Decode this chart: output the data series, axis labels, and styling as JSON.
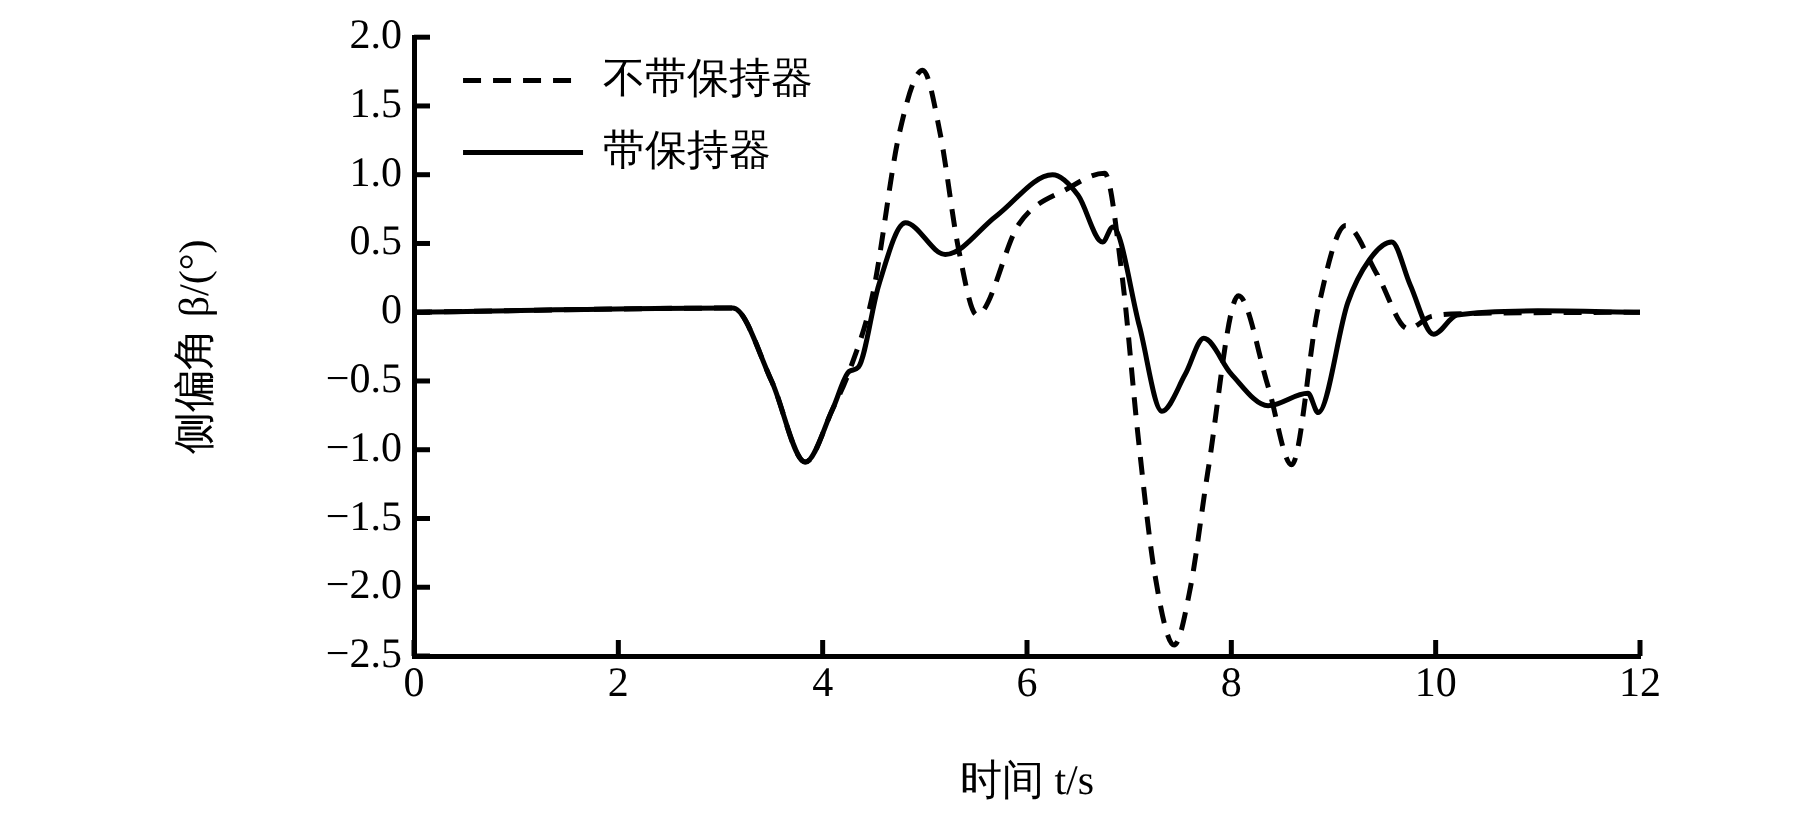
{
  "chart_data": {
    "type": "line",
    "xlabel": "时间 t/s",
    "ylabel": "侧偏角 β/(°)",
    "xlim": [
      0,
      12
    ],
    "xticks": [
      0,
      2,
      4,
      6,
      8,
      10,
      12
    ],
    "ylim": [
      -2.5,
      2
    ],
    "yticks": [
      {
        "value": 2,
        "label": "2.0"
      },
      {
        "value": 1.5,
        "label": "1.5"
      },
      {
        "value": 1,
        "label": "1.0"
      },
      {
        "value": 0.5,
        "label": "0.5"
      },
      0,
      {
        "value": -0.5,
        "label": "−0.5"
      },
      {
        "value": -1,
        "label": "−1.0"
      },
      {
        "value": -1.5,
        "label": "−1.5"
      },
      {
        "value": -2,
        "label": "−2.0"
      },
      {
        "value": -2.5,
        "label": "−2.5"
      }
    ],
    "grid": false,
    "legend": "top left",
    "marker": "none",
    "series": [
      {
        "name": "不带保持器",
        "color": "#000000",
        "line_style": "dashed",
        "x": [
          0,
          3.12,
          3.5,
          3.83,
          4.1,
          4.26,
          4.49,
          4.75,
          4.98,
          5.15,
          5.33,
          5.51,
          5.92,
          6.4,
          6.76,
          6.93,
          7.09,
          7.25,
          7.44,
          7.6,
          7.77,
          8.07,
          8.36,
          8.59,
          8.85,
          9.12,
          9.43,
          9.73,
          9.96,
          10.3,
          12
        ],
        "values": [
          0,
          0.03,
          -0.5,
          -1.09,
          -0.7,
          -0.43,
          0.13,
          1.3,
          1.76,
          1.3,
          0.46,
          -0.02,
          0.64,
          0.9,
          1.01,
          0.27,
          -0.92,
          -1.9,
          -2.42,
          -2.0,
          -1.16,
          0.12,
          -0.54,
          -1.11,
          0.03,
          0.63,
          0.27,
          -0.12,
          -0.03,
          -0.01,
          0
        ]
      },
      {
        "name": "带保持器",
        "color": "#000000",
        "line_style": "solid",
        "x": [
          0,
          3.12,
          3.5,
          3.83,
          4.1,
          4.26,
          4.35,
          4.55,
          4.81,
          5.2,
          5.7,
          6.25,
          6.5,
          6.74,
          6.84,
          7.1,
          7.32,
          7.55,
          7.73,
          8.0,
          8.36,
          8.75,
          8.85,
          9.14,
          9.35,
          9.57,
          9.75,
          9.98,
          10.21,
          11,
          12
        ],
        "values": [
          0,
          0.03,
          -0.5,
          -1.09,
          -0.7,
          -0.43,
          -0.4,
          0.2,
          0.65,
          0.42,
          0.7,
          1.0,
          0.85,
          0.51,
          0.62,
          -0.1,
          -0.72,
          -0.45,
          -0.19,
          -0.45,
          -0.68,
          -0.59,
          -0.73,
          0.07,
          0.38,
          0.51,
          0.2,
          -0.16,
          -0.02,
          0.01,
          0
        ]
      }
    ]
  }
}
